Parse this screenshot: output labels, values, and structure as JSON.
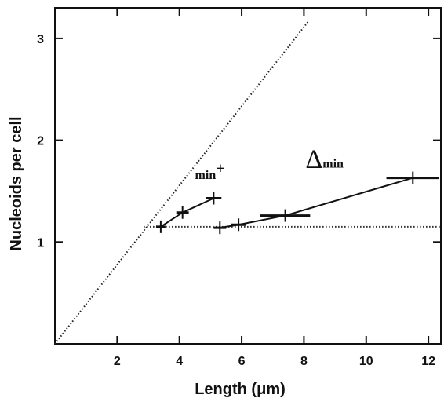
{
  "chart_data": {
    "type": "line",
    "xlabel": "Length (μm)",
    "ylabel": "Nucleoids per cell",
    "xlim": [
      0,
      12.4
    ],
    "ylim": [
      0,
      3.3
    ],
    "x_ticks": [
      2,
      4,
      6,
      8,
      10,
      12
    ],
    "y_ticks": [
      1,
      2,
      3
    ],
    "grid": false,
    "series": [
      {
        "name": "min+",
        "points": [
          {
            "x": 3.4,
            "y": 1.15,
            "xerr": 0.15
          },
          {
            "x": 4.1,
            "y": 1.29,
            "xerr": 0.2
          },
          {
            "x": 5.1,
            "y": 1.43,
            "xerr": 0.25
          }
        ]
      },
      {
        "name": "Δmin",
        "points": [
          {
            "x": 5.3,
            "y": 1.14,
            "xerr": 0.2
          },
          {
            "x": 5.9,
            "y": 1.17,
            "xerr": 0.25
          },
          {
            "x": 7.4,
            "y": 1.26,
            "xerr": 0.8
          },
          {
            "x": 11.5,
            "y": 1.63,
            "xerr": 0.85
          }
        ]
      }
    ],
    "reference_lines": [
      {
        "style": "dotted",
        "from": [
          0,
          0
        ],
        "to": [
          8.15,
          3.17
        ]
      },
      {
        "style": "dotted",
        "from": [
          2.85,
          1.15
        ],
        "to": [
          12.4,
          1.15
        ]
      }
    ],
    "annotations": [
      {
        "id": "min_plus",
        "text": "min",
        "superscript": "+",
        "x": 4.5,
        "y": 1.62
      },
      {
        "id": "delta_min",
        "text": "min",
        "prefix": "Δ",
        "x": 8.05,
        "y": 1.73
      }
    ]
  }
}
